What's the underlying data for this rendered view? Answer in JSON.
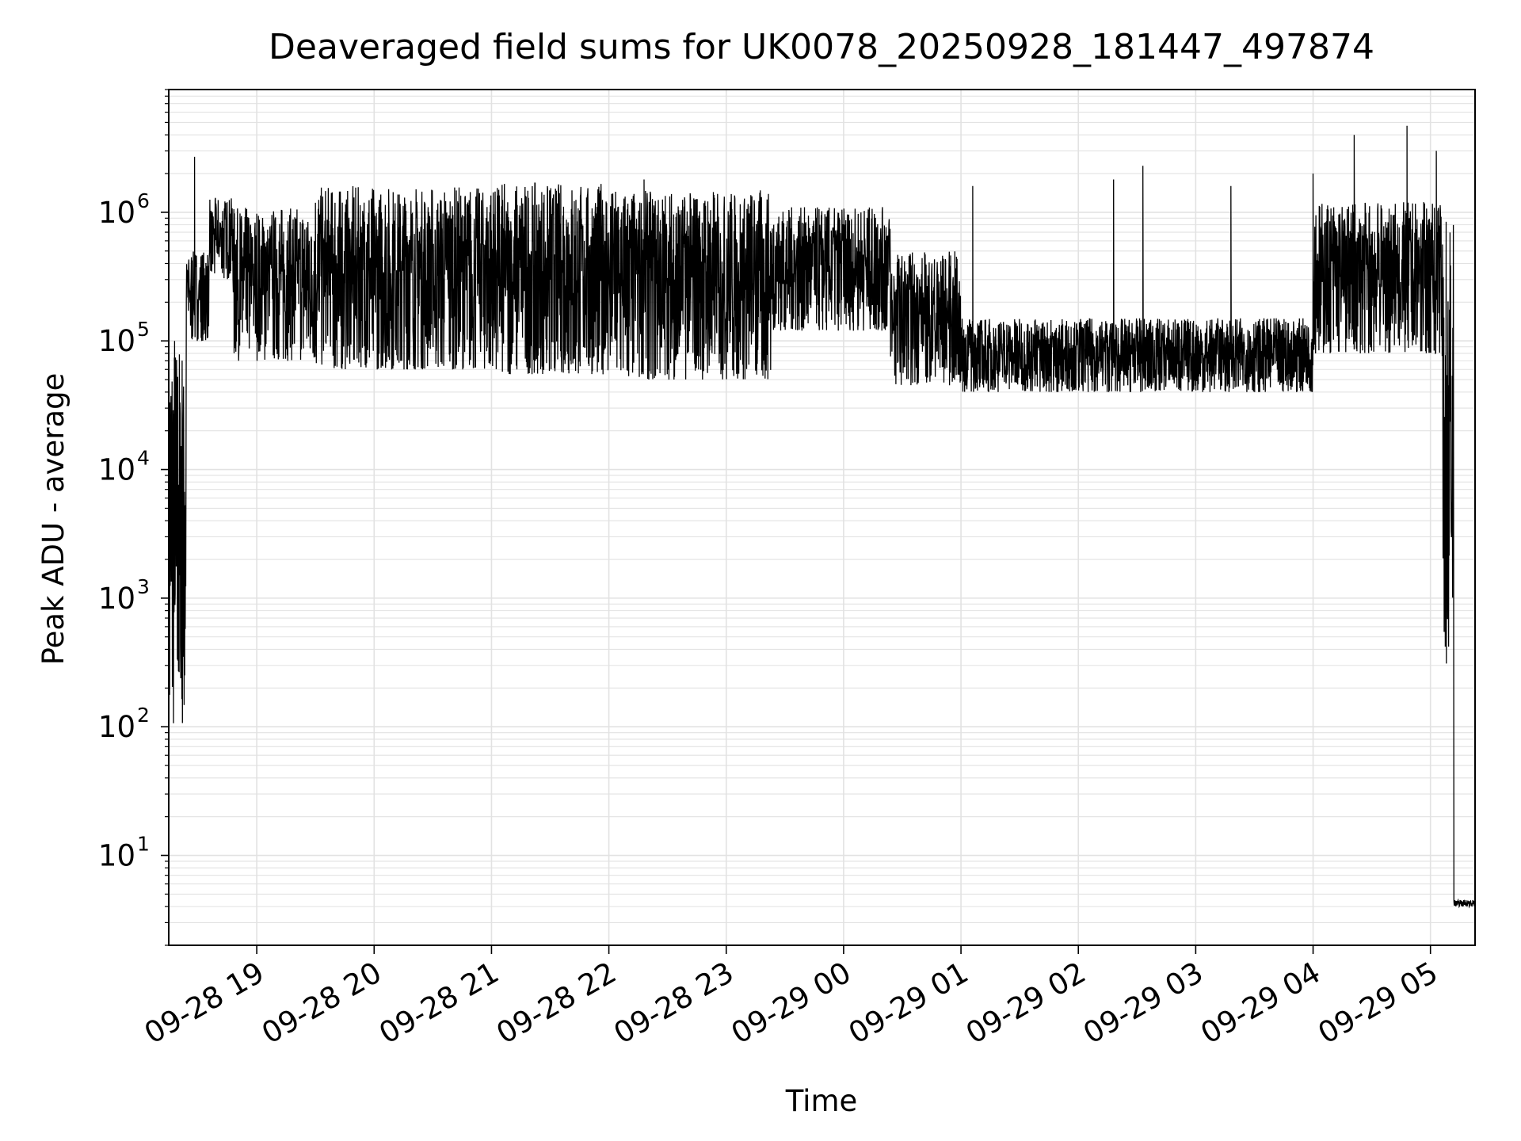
{
  "chart_data": {
    "type": "line",
    "title": "Deaveraged field sums for UK0078_20250928_181447_497874",
    "xlabel": "Time",
    "ylabel": "Peak ADU - average",
    "yscale": "log",
    "ylim": [
      2,
      9000000
    ],
    "xlim_hours_since_0928_1800": [
      0.25,
      11.38
    ],
    "grid": true,
    "line_color": "#000000",
    "grid_color": "#e2e2e2",
    "x_ticks": [
      {
        "hour": 1,
        "label": "09-28 19"
      },
      {
        "hour": 2,
        "label": "09-28 20"
      },
      {
        "hour": 3,
        "label": "09-28 21"
      },
      {
        "hour": 4,
        "label": "09-28 22"
      },
      {
        "hour": 5,
        "label": "09-28 23"
      },
      {
        "hour": 6,
        "label": "09-29 00"
      },
      {
        "hour": 7,
        "label": "09-29 01"
      },
      {
        "hour": 8,
        "label": "09-29 02"
      },
      {
        "hour": 9,
        "label": "09-29 03"
      },
      {
        "hour": 10,
        "label": "09-29 04"
      },
      {
        "hour": 11,
        "label": "09-29 05"
      }
    ],
    "y_ticks": [
      {
        "value": 10,
        "base": "10",
        "exp": "1"
      },
      {
        "value": 100,
        "base": "10",
        "exp": "2"
      },
      {
        "value": 1000,
        "base": "10",
        "exp": "3"
      },
      {
        "value": 10000,
        "base": "10",
        "exp": "4"
      },
      {
        "value": 100000,
        "base": "10",
        "exp": "5"
      },
      {
        "value": 1000000,
        "base": "10",
        "exp": "6"
      }
    ],
    "series": [
      {
        "name": "Deaveraged field sum",
        "segments": [
          {
            "t0": 0.25,
            "t1": 0.4,
            "lo": 100,
            "hi": 100000
          },
          {
            "t0": 0.4,
            "t1": 0.6,
            "lo": 100000,
            "hi": 500000
          },
          {
            "t0": 0.6,
            "t1": 0.8,
            "lo": 300000,
            "hi": 1300000
          },
          {
            "t0": 0.8,
            "t1": 1.5,
            "lo": 70000,
            "hi": 1100000
          },
          {
            "t0": 1.5,
            "t1": 3.0,
            "lo": 60000,
            "hi": 1600000
          },
          {
            "t0": 3.0,
            "t1": 4.0,
            "lo": 55000,
            "hi": 1700000
          },
          {
            "t0": 4.0,
            "t1": 5.4,
            "lo": 50000,
            "hi": 1500000
          },
          {
            "t0": 5.4,
            "t1": 6.4,
            "lo": 120000,
            "hi": 1100000
          },
          {
            "t0": 6.4,
            "t1": 7.0,
            "lo": 45000,
            "hi": 500000
          },
          {
            "t0": 7.0,
            "t1": 10.0,
            "lo": 40000,
            "hi": 150000
          },
          {
            "t0": 10.0,
            "t1": 11.1,
            "lo": 80000,
            "hi": 1200000
          },
          {
            "t0": 11.1,
            "t1": 11.2,
            "lo": 300,
            "hi": 1000000
          },
          {
            "t0": 11.2,
            "t1": 11.38,
            "lo": 4,
            "hi": 4.5
          }
        ],
        "spikes": [
          {
            "t": 0.3,
            "v": 100000
          },
          {
            "t": 0.47,
            "v": 2700000
          },
          {
            "t": 4.3,
            "v": 1800000
          },
          {
            "t": 7.1,
            "v": 1600000
          },
          {
            "t": 8.3,
            "v": 1800000
          },
          {
            "t": 8.55,
            "v": 2300000
          },
          {
            "t": 9.3,
            "v": 1600000
          },
          {
            "t": 10.0,
            "v": 2000000
          },
          {
            "t": 10.35,
            "v": 4000000
          },
          {
            "t": 10.8,
            "v": 4700000
          },
          {
            "t": 11.05,
            "v": 3000000
          }
        ]
      }
    ]
  }
}
